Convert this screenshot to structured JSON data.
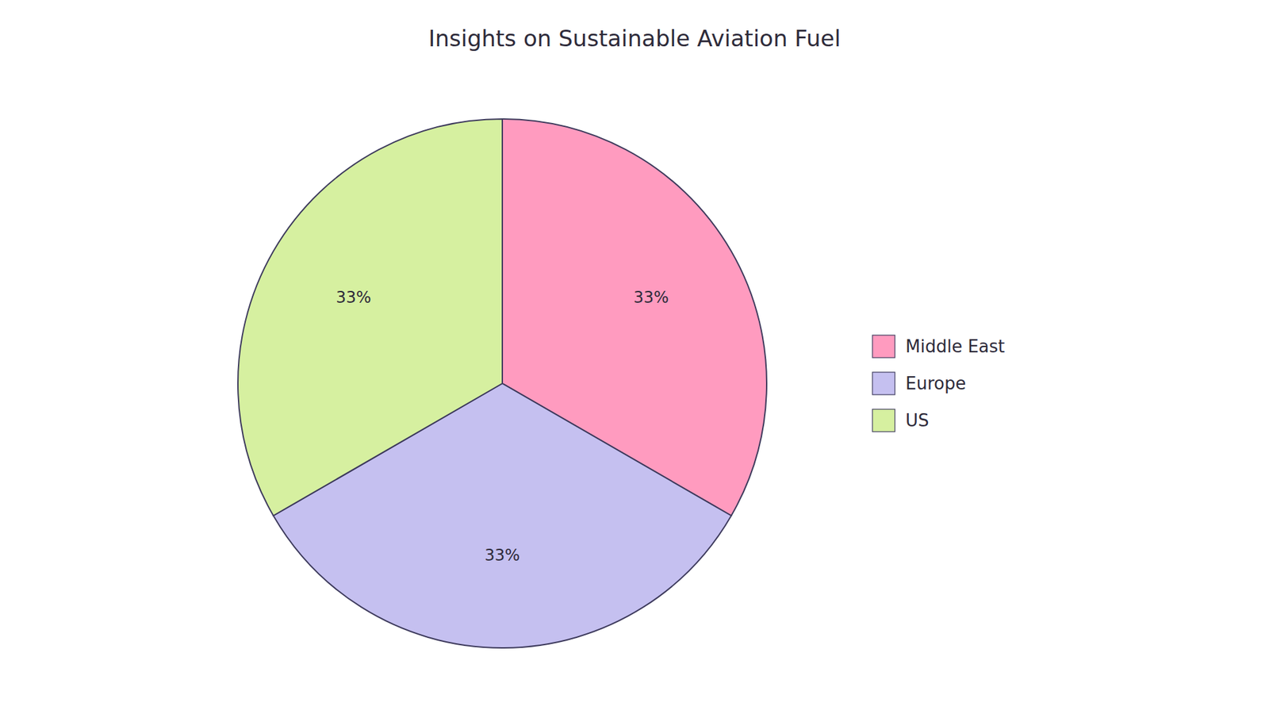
{
  "chart_data": {
    "type": "pie",
    "title": "Insights on Sustainable Aviation Fuel",
    "categories": [
      "Middle East",
      "Europe",
      "US"
    ],
    "values": [
      33,
      33,
      33
    ],
    "value_labels": [
      "33%",
      "33%",
      "33%"
    ],
    "colors": [
      "#FF9BBF",
      "#C5C0F0",
      "#D6F0A0"
    ],
    "data_labels": true,
    "legend": "right"
  }
}
